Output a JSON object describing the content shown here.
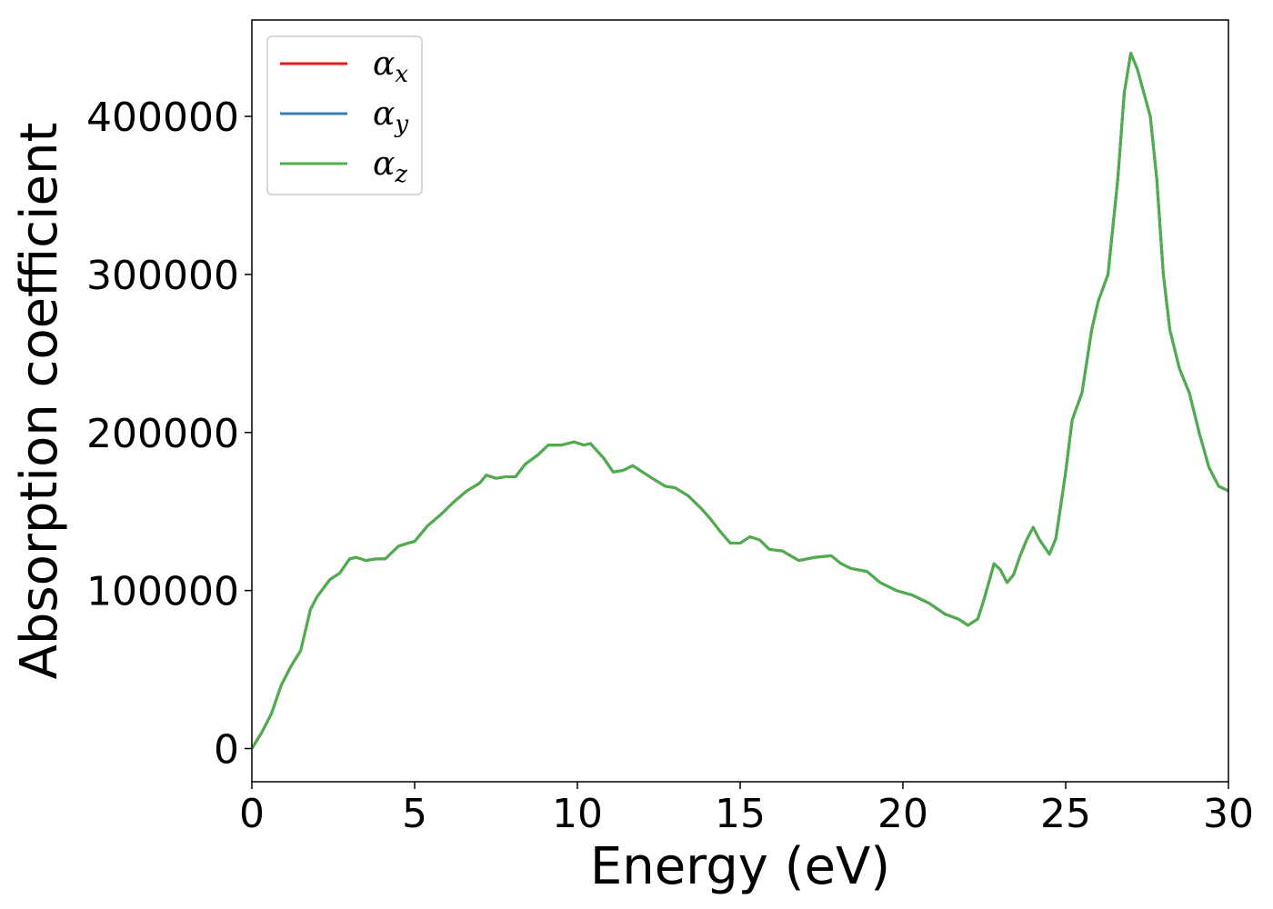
{
  "chart_data": {
    "type": "line",
    "xlabel": "Energy (eV)",
    "ylabel": "Absorption coefficient",
    "xlim": [
      0,
      30
    ],
    "xticks": [
      0,
      5,
      10,
      15,
      20,
      25,
      30
    ],
    "ylim": [
      -21000,
      461000
    ],
    "yticks": [
      0,
      100000,
      200000,
      300000,
      400000
    ],
    "legend": "upper left",
    "grid": false,
    "x": [
      0,
      0.3,
      0.6,
      0.9,
      1.2,
      1.5,
      1.8,
      2.0,
      2.4,
      2.7,
      3.0,
      3.2,
      3.5,
      3.8,
      4.1,
      4.5,
      4.8,
      5.0,
      5.4,
      5.8,
      6.2,
      6.6,
      7.0,
      7.2,
      7.5,
      7.8,
      8.1,
      8.4,
      8.8,
      9.1,
      9.5,
      9.9,
      10.2,
      10.4,
      10.8,
      11.1,
      11.4,
      11.7,
      12.0,
      12.3,
      12.7,
      13.0,
      13.4,
      13.8,
      14.1,
      14.4,
      14.7,
      15.0,
      15.3,
      15.6,
      15.9,
      16.3,
      16.8,
      17.3,
      17.8,
      18.1,
      18.4,
      18.9,
      19.3,
      19.8,
      20.3,
      20.8,
      21.3,
      21.7,
      22.0,
      22.3,
      22.5,
      22.8,
      23.0,
      23.2,
      23.4,
      23.6,
      23.8,
      24.0,
      24.2,
      24.5,
      24.7,
      25.0,
      25.2,
      25.5,
      25.8,
      26.0,
      26.3,
      26.6,
      26.8,
      27.0,
      27.2,
      27.4,
      27.6,
      27.8,
      28.0,
      28.2,
      28.5,
      28.8,
      29.1,
      29.4,
      29.7,
      30.0
    ],
    "series": [
      {
        "name": "αx",
        "color": "#e41a1c",
        "values": [
          0,
          10000,
          22000,
          40000,
          52000,
          62000,
          88000,
          96000,
          107000,
          111000,
          120000,
          121000,
          119000,
          120000,
          120000,
          128000,
          130000,
          131000,
          141000,
          148000,
          156000,
          163000,
          168000,
          173000,
          171000,
          172000,
          172000,
          180000,
          186000,
          192000,
          192000,
          194000,
          192000,
          193000,
          184000,
          175000,
          176000,
          179000,
          175000,
          171000,
          166000,
          165000,
          160000,
          152000,
          145000,
          137000,
          130000,
          130000,
          134000,
          132000,
          126000,
          125000,
          119000,
          121000,
          122000,
          117000,
          114000,
          112000,
          105000,
          100000,
          97000,
          92000,
          85000,
          82000,
          78000,
          82000,
          95000,
          117000,
          113000,
          105000,
          110000,
          122000,
          132000,
          140000,
          132000,
          123000,
          133000,
          175000,
          208000,
          225000,
          265000,
          283000,
          300000,
          360000,
          415000,
          440000,
          430000,
          415000,
          400000,
          360000,
          300000,
          265000,
          240000,
          225000,
          200000,
          178000,
          166000,
          163000
        ]
      },
      {
        "name": "αy",
        "color": "#377eb8",
        "values": [
          0,
          10000,
          22000,
          40000,
          52000,
          62000,
          88000,
          96000,
          107000,
          111000,
          120000,
          121000,
          119000,
          120000,
          120000,
          128000,
          130000,
          131000,
          141000,
          148000,
          156000,
          163000,
          168000,
          173000,
          171000,
          172000,
          172000,
          180000,
          186000,
          192000,
          192000,
          194000,
          192000,
          193000,
          184000,
          175000,
          176000,
          179000,
          175000,
          171000,
          166000,
          165000,
          160000,
          152000,
          145000,
          137000,
          130000,
          130000,
          134000,
          132000,
          126000,
          125000,
          119000,
          121000,
          122000,
          117000,
          114000,
          112000,
          105000,
          100000,
          97000,
          92000,
          85000,
          82000,
          78000,
          82000,
          95000,
          117000,
          113000,
          105000,
          110000,
          122000,
          132000,
          140000,
          132000,
          123000,
          133000,
          175000,
          208000,
          225000,
          265000,
          283000,
          300000,
          360000,
          415000,
          440000,
          430000,
          415000,
          400000,
          360000,
          300000,
          265000,
          240000,
          225000,
          200000,
          178000,
          166000,
          163000
        ]
      },
      {
        "name": "αz",
        "color": "#4daf4a",
        "values": [
          0,
          10000,
          22000,
          40000,
          52000,
          62000,
          88000,
          96000,
          107000,
          111000,
          120000,
          121000,
          119000,
          120000,
          120000,
          128000,
          130000,
          131000,
          141000,
          148000,
          156000,
          163000,
          168000,
          173000,
          171000,
          172000,
          172000,
          180000,
          186000,
          192000,
          192000,
          194000,
          192000,
          193000,
          184000,
          175000,
          176000,
          179000,
          175000,
          171000,
          166000,
          165000,
          160000,
          152000,
          145000,
          137000,
          130000,
          130000,
          134000,
          132000,
          126000,
          125000,
          119000,
          121000,
          122000,
          117000,
          114000,
          112000,
          105000,
          100000,
          97000,
          92000,
          85000,
          82000,
          78000,
          82000,
          95000,
          117000,
          113000,
          105000,
          110000,
          122000,
          132000,
          140000,
          132000,
          123000,
          133000,
          175000,
          208000,
          225000,
          265000,
          283000,
          300000,
          360000,
          415000,
          440000,
          430000,
          415000,
          400000,
          360000,
          300000,
          265000,
          240000,
          225000,
          200000,
          178000,
          166000,
          163000
        ]
      }
    ]
  }
}
